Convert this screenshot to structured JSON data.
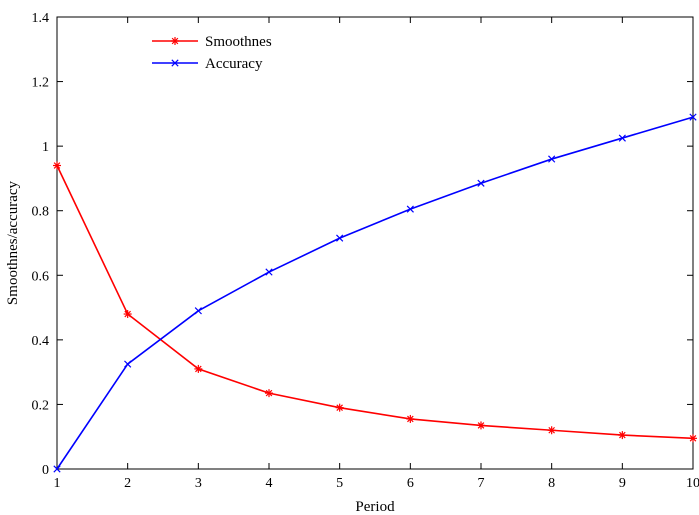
{
  "chart_data": {
    "type": "line",
    "title": "",
    "xlabel": "Period",
    "ylabel": "Smoothnes/accuracy",
    "x": [
      1,
      2,
      3,
      4,
      5,
      6,
      7,
      8,
      9,
      10
    ],
    "xlim": [
      1,
      10
    ],
    "ylim": [
      0,
      1.4
    ],
    "xticks": [
      "1",
      "2",
      "3",
      "4",
      "5",
      "6",
      "7",
      "8",
      "9",
      "10"
    ],
    "yticks": [
      "0",
      "0.2",
      "0.4",
      "0.6",
      "0.8",
      "1",
      "1.2",
      "1.4"
    ],
    "grid": false,
    "legend_position": "top-left",
    "series": [
      {
        "name": "Smoothnes",
        "color": "#ff0000",
        "marker": "star",
        "values": [
          0.94,
          0.48,
          0.31,
          0.235,
          0.19,
          0.155,
          0.135,
          0.12,
          0.105,
          0.095
        ]
      },
      {
        "name": "Accuracy",
        "color": "#0000ff",
        "marker": "x",
        "values": [
          0.0,
          0.325,
          0.49,
          0.61,
          0.715,
          0.805,
          0.885,
          0.96,
          1.025,
          1.09
        ]
      }
    ]
  }
}
